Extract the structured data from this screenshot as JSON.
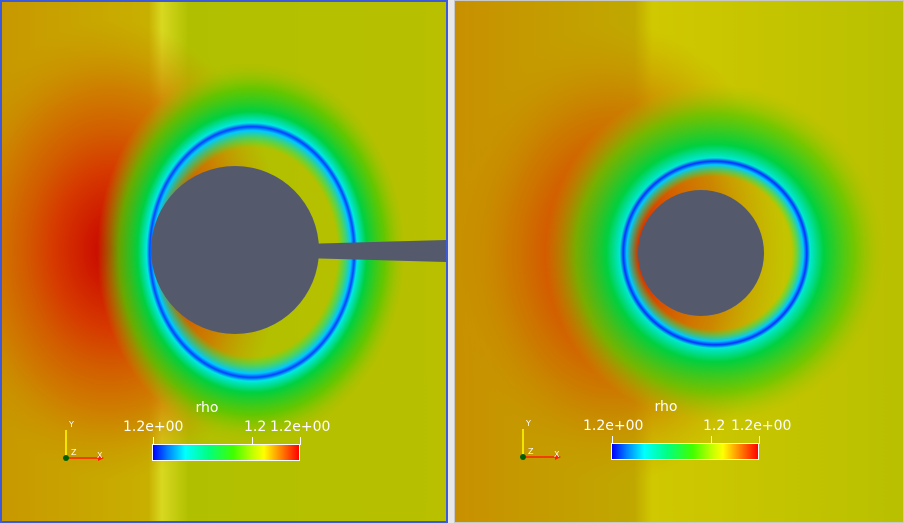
{
  "views": [
    {
      "id": "left",
      "colorbar": {
        "title": "rho",
        "min_label": "1.2e+00",
        "mid_label": "1.2",
        "max_label": "1.2e+00"
      },
      "axes": {
        "y": "Y",
        "z": "Z",
        "x": "X"
      }
    },
    {
      "id": "right",
      "colorbar": {
        "title": "rho",
        "min_label": "1.2e+00",
        "mid_label": "1.2",
        "max_label": "1.2e+00"
      },
      "axes": {
        "y": "Y",
        "z": "Z",
        "x": "X"
      }
    }
  ],
  "colors": {
    "background_field": "#b8c000",
    "stagnation": "#c80000",
    "cylinder": "#545a6c",
    "active_view_border": "#3d5bd9"
  }
}
